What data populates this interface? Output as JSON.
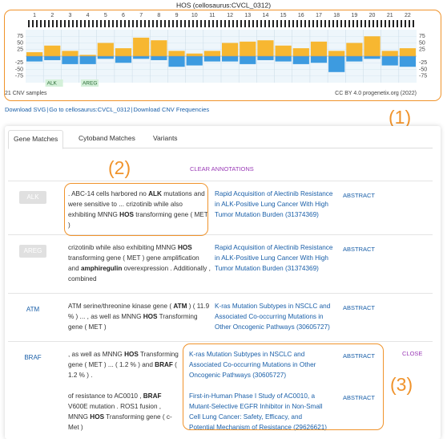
{
  "chart_data": {
    "type": "bar",
    "title": "HOS (cellosaurus:CVCL_0312)",
    "categories": [
      "1",
      "2",
      "3",
      "4",
      "5",
      "6",
      "7",
      "8",
      "9",
      "10",
      "11",
      "12",
      "13",
      "14",
      "15",
      "16",
      "17",
      "18",
      "19",
      "20",
      "21",
      "22"
    ],
    "series": [
      {
        "name": "gain",
        "color": "#f7b731",
        "values": [
          15,
          40,
          20,
          5,
          50,
          30,
          70,
          60,
          20,
          10,
          20,
          50,
          55,
          60,
          40,
          30,
          55,
          20,
          50,
          75,
          20,
          30
        ]
      },
      {
        "name": "loss",
        "color": "#3d9be0",
        "values": [
          -20,
          -15,
          -30,
          -30,
          -10,
          -25,
          -10,
          -15,
          -40,
          -35,
          -20,
          -20,
          -30,
          -15,
          -20,
          -30,
          -25,
          -60,
          -20,
          -10,
          -35,
          -40
        ]
      }
    ],
    "ylim": [
      -100,
      100
    ],
    "yticks": [
      75,
      50,
      25,
      -25,
      -50,
      -75
    ],
    "genes": [
      "ALK",
      "AREG"
    ],
    "samples": "21 CNV samples",
    "license": "CC BY 4.0 progenetix.org (2022)"
  },
  "links": [
    "Download SVG",
    "|",
    "Go to cellosaurus:CVCL_0312",
    "|",
    "Download CNV Frequencies"
  ],
  "callouts": [
    "(1)",
    "(2)",
    "(3)"
  ],
  "tabs": [
    "Gene Matches",
    "Cytoband Matches",
    "Variants"
  ],
  "clear": "CLEAR ANNOTATIONS",
  "rows": [
    {
      "gene": "ALK",
      "style": "button",
      "items": [
        {
          "snippet": [
            {
              "text": ". ABC-14 cells harbored no ",
              "bold": false
            },
            {
              "text": "ALK",
              "bold": true
            },
            {
              "text": " mutations and were sensitive to ... crizotinib while also exhibiting MNNG ",
              "bold": false
            },
            {
              "text": "HOS",
              "bold": true
            },
            {
              "text": " transforming gene ( MET )",
              "bold": false
            }
          ],
          "title": "Rapid Acquisition of Alectinib Resistance in ALK-Positive Lung Cancer With High Tumor Mutation Burden (31374369)",
          "action": "ABSTRACT"
        }
      ]
    },
    {
      "gene": "AREG",
      "style": "button",
      "items": [
        {
          "snippet": [
            {
              "text": "crizotinib while also exhibiting MNNG ",
              "bold": false
            },
            {
              "text": "HOS",
              "bold": true
            },
            {
              "text": " transforming gene ( MET ) gene amplification and ",
              "bold": false
            },
            {
              "text": "amphiregulin",
              "bold": true
            },
            {
              "text": " overexpression . Additionally , combined",
              "bold": false
            }
          ],
          "title": "Rapid Acquisition of Alectinib Resistance in ALK-Positive Lung Cancer With High Tumor Mutation Burden (31374369)",
          "action": "ABSTRACT"
        }
      ]
    },
    {
      "gene": "ATM",
      "style": "link",
      "items": [
        {
          "snippet": [
            {
              "text": "ATM serine/threonine kinase gene ( ",
              "bold": false
            },
            {
              "text": "ATM",
              "bold": true
            },
            {
              "text": " ) ( 11.9 % ) ... , as well as MNNG ",
              "bold": false
            },
            {
              "text": "HOS",
              "bold": true
            },
            {
              "text": " Transforming gene ( MET )",
              "bold": false
            }
          ],
          "title": "K-ras Mutation Subtypes in NSCLC and Associated Co-occurring Mutations in Other Oncogenic Pathways (30605727)",
          "action": "ABSTRACT"
        }
      ]
    },
    {
      "gene": "BRAF",
      "style": "link",
      "close": "CLOSE",
      "items": [
        {
          "snippet": [
            {
              "text": ", as well as MNNG ",
              "bold": false
            },
            {
              "text": "HOS",
              "bold": true
            },
            {
              "text": " Transforming gene ( MET ) ... ( 1.2 % ) and ",
              "bold": false
            },
            {
              "text": "BRAF",
              "bold": true
            },
            {
              "text": " ( 1.2 % ) .",
              "bold": false
            }
          ],
          "title": "K-ras Mutation Subtypes in NSCLC and Associated Co-occurring Mutations in Other Oncogenic Pathways (30605727)",
          "action": "ABSTRACT"
        },
        {
          "snippet": [
            {
              "text": "of resistance to AC0010 , ",
              "bold": false
            },
            {
              "text": "BRAF",
              "bold": true
            },
            {
              "text": " V600E mutation . ROS1 fusion , MNNG ",
              "bold": false
            },
            {
              "text": "HOS",
              "bold": true
            },
            {
              "text": " Transforming gene ( c-Met )",
              "bold": false
            }
          ],
          "title": "First-in-Human Phase I Study of AC0010, a Mutant-Selective EGFR Inhibitor in Non-Small Cell Lung Cancer: Safety, Efficacy, and Potential Mechanism of Resistance (29626621)",
          "action": "ABSTRACT"
        }
      ]
    }
  ]
}
